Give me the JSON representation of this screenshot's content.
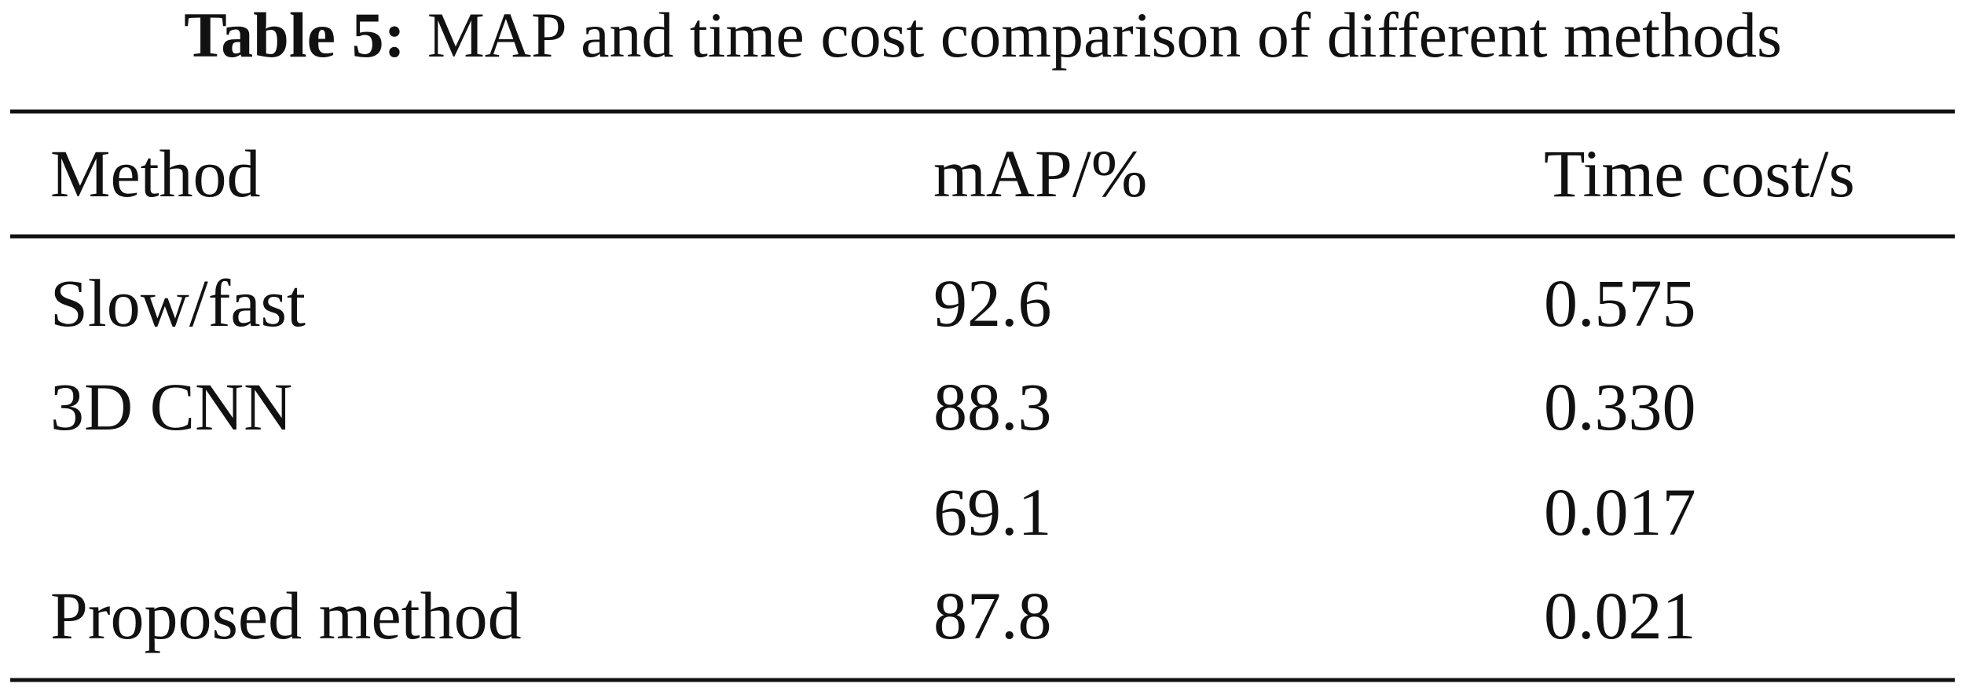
{
  "table": {
    "label": "Table 5:",
    "caption": "MAP and time cost comparison of different methods",
    "header": [
      "Method",
      "mAP/%",
      "Time cost/s"
    ],
    "rows": [
      [
        "Slow/fast",
        "92.6",
        "0.575"
      ],
      [
        "3D CNN",
        "88.3",
        "0.330"
      ],
      [
        null,
        "69.1",
        "0.017"
      ],
      [
        "Proposed method",
        "87.8",
        "0.021"
      ]
    ]
  }
}
